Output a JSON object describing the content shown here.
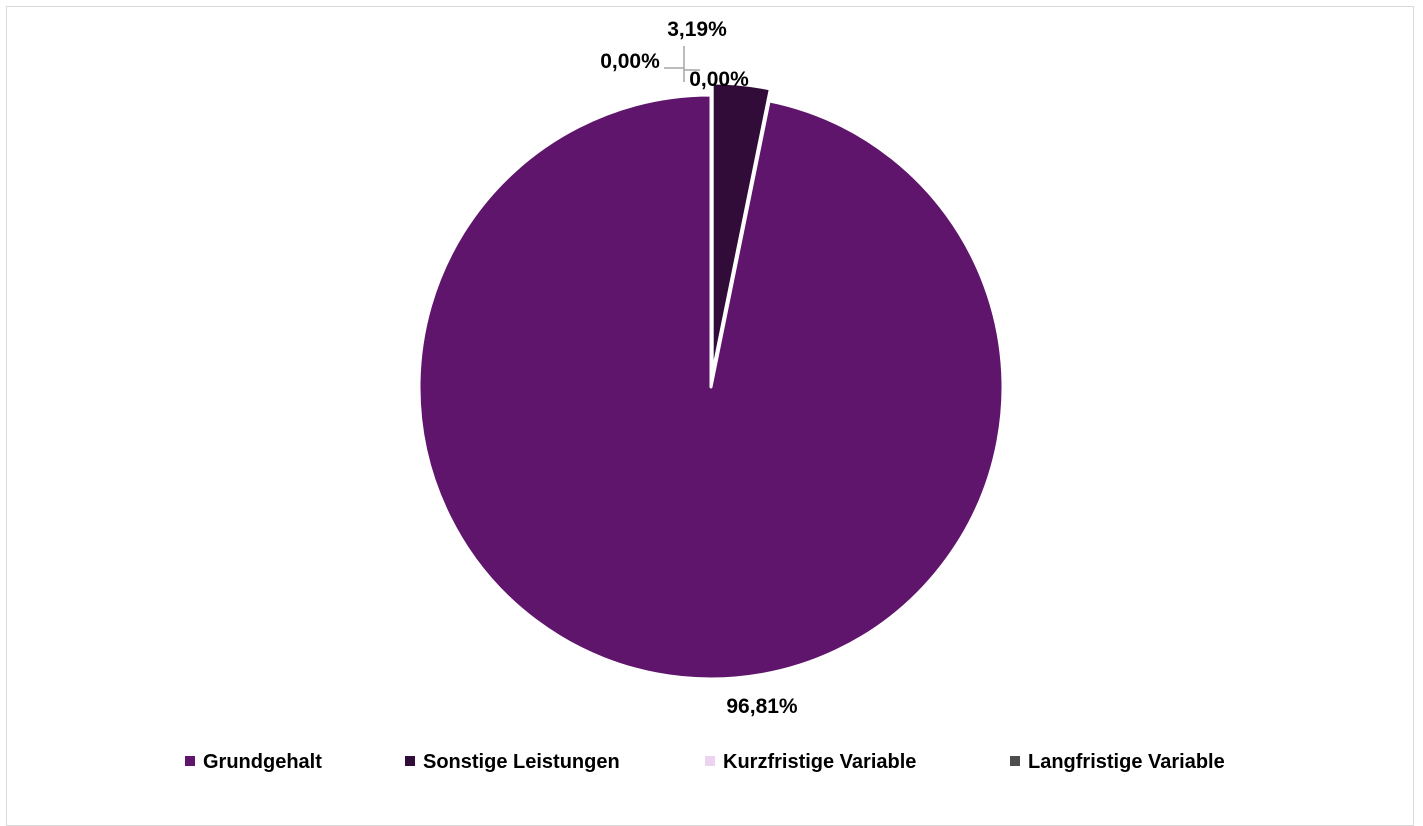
{
  "chart_data": {
    "type": "pie",
    "title": "",
    "start_angle_deg": 0,
    "direction": "counterclockwise",
    "slices": [
      {
        "name": "Grundgehalt",
        "value": 96.81,
        "label": "96,81%",
        "color": "#5f156b",
        "explode": false
      },
      {
        "name": "Sonstige Leistungen",
        "value": 3.19,
        "label": "3,19%",
        "color": "#310c38",
        "explode": true
      },
      {
        "name": "Kurzfristige Variable",
        "value": 0.0,
        "label": "0,00%",
        "color": "#ecd3ef",
        "explode": false
      },
      {
        "name": "Langfristige Variable",
        "value": 0.0,
        "label": "0,00%",
        "color": "#4d4d4d",
        "explode": false
      }
    ],
    "legend_position": "bottom"
  }
}
